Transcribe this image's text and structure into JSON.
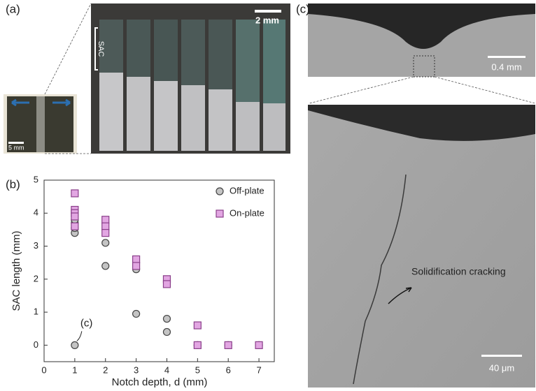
{
  "panels": {
    "a": {
      "label": "(a)",
      "scale_bar": "2 mm",
      "region_label": "SAC",
      "inset_scale_bar": "5 mm"
    },
    "b": {
      "label": "(b)"
    },
    "c": {
      "label": "(c)",
      "top_scale_bar": "0.4 mm",
      "annotation": "Solidification cracking",
      "bottom_scale_bar": "40 μm"
    }
  },
  "chart_data": {
    "type": "scatter",
    "x_label": "Notch depth, d (mm)",
    "y_label": "SAC length (mm)",
    "annotation": "(c)",
    "xlim": [
      0,
      7.5
    ],
    "ylim": [
      -0.5,
      5
    ],
    "xticks": [
      0,
      1,
      2,
      3,
      4,
      5,
      6,
      7
    ],
    "yticks": [
      0,
      1,
      2,
      3,
      4,
      5
    ],
    "grid": false,
    "legend": "upper right",
    "series": [
      {
        "name": "Off-plate",
        "color": "#c4c4c4",
        "marker": "circle",
        "x": [
          1,
          1,
          1,
          1,
          1,
          2,
          2,
          3,
          3,
          4,
          4,
          5,
          6,
          7
        ],
        "values": [
          0,
          3.4,
          3.55,
          3.7,
          3.8,
          2.4,
          3.1,
          0.95,
          2.3,
          0.4,
          0.8,
          0,
          0,
          0
        ]
      },
      {
        "name": "On-plate",
        "color": "#e2a6e2",
        "marker": "square",
        "x": [
          1,
          1,
          1,
          1,
          1,
          2,
          2,
          2,
          3,
          3,
          4,
          4,
          5,
          5,
          6,
          7
        ],
        "values": [
          4.6,
          4.1,
          4.0,
          3.9,
          3.6,
          3.8,
          3.6,
          3.4,
          2.6,
          2.4,
          2.0,
          1.85,
          0.6,
          0,
          0,
          0
        ]
      }
    ]
  }
}
